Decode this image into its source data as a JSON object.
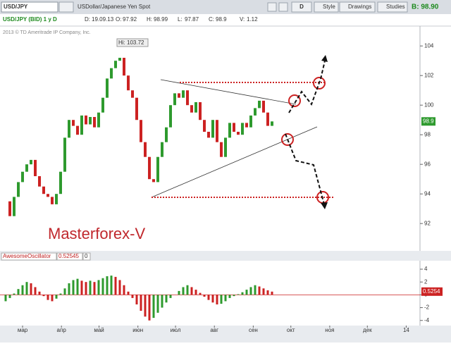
{
  "toolbar": {
    "symbol": "USD/JPY",
    "description": "USDollar/Japanese Yen Spot",
    "period": "D",
    "buttons": [
      "Style",
      "Drawings",
      "Studies"
    ],
    "bid": "B: 98.90"
  },
  "chart_data": [
    {
      "type": "candlestick",
      "title": "USD/JPY (BID) 1 y D",
      "info": [
        "D:",
        "19.09.13",
        "O:",
        "97.92",
        "H:",
        "98.99",
        "L:",
        "97.87",
        "C:",
        "98.9",
        "V:",
        "1.12"
      ],
      "copyright": "2013 © TD Ameritrade IP Company, Inc.",
      "annotations": [
        "Hi: 103.72",
        "Masterforex-V"
      ],
      "last_label": "98.9",
      "values": [
        93.5,
        92.5,
        93.8,
        94.8,
        95.5,
        96.0,
        96.3,
        95.2,
        94.5,
        94.0,
        93.8,
        93.3,
        94.0,
        95.5,
        97.8,
        99.0,
        98.6,
        98.0,
        99.3,
        98.7,
        99.2,
        98.5,
        99.5,
        100.5,
        101.8,
        102.5,
        103.0,
        103.2,
        102.0,
        101.0,
        100.5,
        99.0,
        97.5,
        96.5,
        95.0,
        94.8,
        96.5,
        97.5,
        98.5,
        100.0,
        100.8,
        100.5,
        101.0,
        100.0,
        99.5,
        100.2,
        99.0,
        98.2,
        97.8,
        99.0,
        97.5,
        96.5,
        97.8,
        98.8,
        98.2,
        98.0,
        98.8,
        98.5,
        99.3,
        99.8,
        100.3,
        99.5,
        98.6,
        98.9
      ],
      "colors": {
        "up": "#2e9a2e",
        "down": "#cc2222"
      },
      "ylim": [
        90.2,
        105.2
      ],
      "yticks": [
        92,
        94,
        96,
        98,
        100,
        102,
        104
      ],
      "xlim": [
        41,
        376
      ],
      "xticks": [
        {
          "value": 59,
          "label": "мар"
        },
        {
          "value": 90,
          "label": "апр"
        },
        {
          "value": 120,
          "label": "май"
        },
        {
          "value": 151,
          "label": "июн"
        },
        {
          "value": 181,
          "label": "июл"
        },
        {
          "value": 212,
          "label": "авг"
        },
        {
          "value": 243,
          "label": "сен"
        },
        {
          "value": 273,
          "label": "окт"
        },
        {
          "value": 304,
          "label": "ноя"
        },
        {
          "value": 334,
          "label": "дек"
        },
        {
          "value": 365,
          "label": "14"
        }
      ]
    },
    {
      "type": "bar",
      "name": "AwesomeOscillator",
      "value_text": "0.52545",
      "zero_text": "0",
      "axis_label": "0.5254",
      "values": [
        -1.0,
        -0.5,
        0.2,
        0.9,
        1.5,
        2.0,
        1.8,
        1.2,
        0.5,
        -0.2,
        -0.8,
        -1.0,
        -0.6,
        0.2,
        1.0,
        1.8,
        2.3,
        2.5,
        2.2,
        2.0,
        2.2,
        2.0,
        2.3,
        2.6,
        2.9,
        3.0,
        2.8,
        2.3,
        1.5,
        0.5,
        -0.5,
        -1.5,
        -2.5,
        -3.4,
        -4.0,
        -3.6,
        -2.8,
        -2.0,
        -1.2,
        -0.5,
        0.0,
        0.6,
        1.2,
        1.5,
        1.2,
        0.8,
        0.3,
        -0.3,
        -0.8,
        -1.2,
        -1.5,
        -1.4,
        -1.0,
        -0.5,
        -0.2,
        0.1,
        0.4,
        0.8,
        1.2,
        1.5,
        1.3,
        1.0,
        0.7,
        0.5
      ],
      "colors": {
        "up": "#2e9a2e",
        "down": "#cc2222"
      },
      "ylim": [
        -4.8,
        5.1
      ],
      "yticks": [
        -4,
        -2,
        0,
        2,
        4
      ]
    }
  ]
}
